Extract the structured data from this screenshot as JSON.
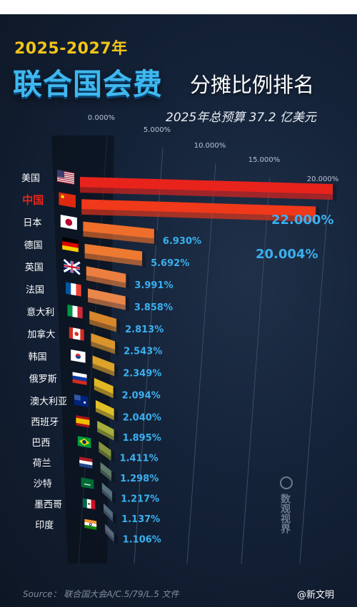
{
  "title": {
    "year": "2025-2027年",
    "big": "联合国会费",
    "small": "分摊比例排名",
    "subtitle": "2025年总预算 37.2 亿美元"
  },
  "source": "Source： 联合国大会A/C.5/79/L.5 文件",
  "credit": "@新文明",
  "watermark": "数观视界",
  "chart_data": {
    "type": "bar",
    "orientation": "horizontal",
    "categories": [
      "美国",
      "中国",
      "日本",
      "德国",
      "英国",
      "法国",
      "意大利",
      "加拿大",
      "韩国",
      "俄罗斯",
      "澳大利亚",
      "西班牙",
      "巴西",
      "荷兰",
      "沙特",
      "墨西哥",
      "印度"
    ],
    "values": [
      22.0,
      20.004,
      6.93,
      5.692,
      3.991,
      3.858,
      2.813,
      2.543,
      2.349,
      2.094,
      2.04,
      1.895,
      1.411,
      1.298,
      1.217,
      1.137,
      1.106
    ],
    "value_labels": [
      "22.000%",
      "20.004%",
      "6.930%",
      "5.692%",
      "3.991%",
      "3.858%",
      "2.813%",
      "2.543%",
      "2.349%",
      "2.094%",
      "2.040%",
      "1.895%",
      "1.411%",
      "1.298%",
      "1.217%",
      "1.137%",
      "1.106%"
    ],
    "axis_ticks": [
      "0.000%",
      "5.000%",
      "10.000%",
      "15.000%",
      "20.000%"
    ],
    "xlim": [
      0,
      20
    ],
    "highlight_category": "中国",
    "bar_colors": [
      "#e8231c",
      "#f0381a",
      "#ee6e2a",
      "#ee7a32",
      "#ec7f3f",
      "#e9864a",
      "#d8862c",
      "#d9952c",
      "#dca22a",
      "#e3b624",
      "#e0c028",
      "#a5ae3a",
      "#84933c",
      "#5f7a68",
      "#56707e",
      "#55697c",
      "#5a667a"
    ],
    "flag_icons": [
      "us-flag-icon",
      "cn-flag-icon",
      "jp-flag-icon",
      "de-flag-icon",
      "gb-flag-icon",
      "fr-flag-icon",
      "it-flag-icon",
      "ca-flag-icon",
      "kr-flag-icon",
      "ru-flag-icon",
      "au-flag-icon",
      "es-flag-icon",
      "br-flag-icon",
      "nl-flag-icon",
      "sa-flag-icon",
      "mx-flag-icon",
      "in-flag-icon"
    ]
  }
}
